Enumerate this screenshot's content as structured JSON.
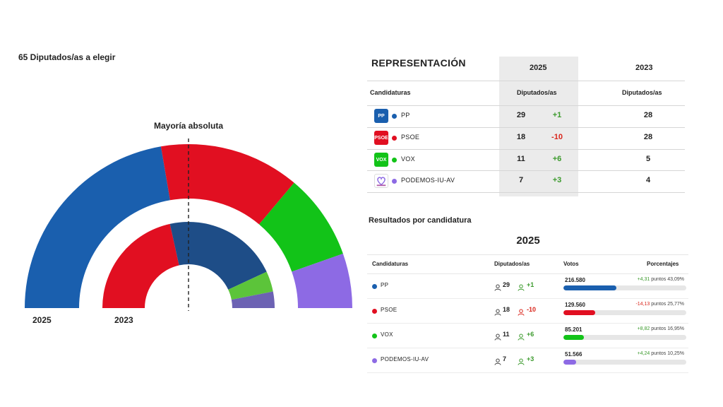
{
  "seats_title": "65 Diputados/as a elegir",
  "majority_label": "Mayoría absoluta",
  "chart_data": {
    "type": "hemicycle",
    "total_seats": 65,
    "majority": 33,
    "rings": [
      {
        "year": "2025",
        "parties": [
          {
            "name": "PP",
            "seats": 29,
            "color": "#1a5fae"
          },
          {
            "name": "PSOE",
            "seats": 18,
            "color": "#e10f21"
          },
          {
            "name": "VOX",
            "seats": 11,
            "color": "#12c318"
          },
          {
            "name": "PODEMOS-IU-AV",
            "seats": 7,
            "color": "#8d6ae4"
          }
        ]
      },
      {
        "year": "2023",
        "parties": [
          {
            "name": "PSOE",
            "seats": 28,
            "color": "#e10f21"
          },
          {
            "name": "PP",
            "seats": 28,
            "color": "#1e4d87"
          },
          {
            "name": "VOX",
            "seats": 5,
            "color": "#5cc43a"
          },
          {
            "name": "PODEMOS-IU-AV",
            "seats": 4,
            "color": "#6c62b3"
          }
        ]
      }
    ]
  },
  "representation": {
    "title": "REPRESENTACIÓN",
    "year_current": "2025",
    "year_previous": "2023",
    "col_party": "Candidaturas",
    "col_seats_current": "Diputados/as",
    "col_seats_previous": "Diputados/as",
    "rows": [
      {
        "logo": "PP",
        "logo_color": "#1a5fae",
        "name": "PP",
        "color": "#1a5fae",
        "seats": "29",
        "diff": "+1",
        "diff_sign": "up",
        "prev": "28"
      },
      {
        "logo": "PSOE",
        "logo_color": "#e10f21",
        "name": "PSOE",
        "color": "#e10f21",
        "seats": "18",
        "diff": "-10",
        "diff_sign": "down",
        "prev": "28"
      },
      {
        "logo": "VOX",
        "logo_color": "#12c318",
        "name": "VOX",
        "color": "#12c318",
        "seats": "11",
        "diff": "+6",
        "diff_sign": "up",
        "prev": "5"
      },
      {
        "logo": "",
        "logo_color": "#ffffff",
        "name": "PODEMOS-IU-AV",
        "color": "#8d6ae4",
        "seats": "7",
        "diff": "+3",
        "diff_sign": "up",
        "prev": "4"
      }
    ]
  },
  "results": {
    "title": "Resultados por candidatura",
    "year": "2025",
    "col_party": "Candidaturas",
    "col_seats": "Diputados/as",
    "col_votes": "Votos",
    "col_pct": "Porcentajes",
    "rows": [
      {
        "name": "PP",
        "color": "#1a5fae",
        "seats": "29",
        "diff": "+1",
        "diff_sign": "up",
        "votes": "216.580",
        "change": "+4,31",
        "points_label": "puntos",
        "percent": "43,09%",
        "share": 0.4309
      },
      {
        "name": "PSOE",
        "color": "#e10f21",
        "seats": "18",
        "diff": "-10",
        "diff_sign": "down",
        "votes": "129.560",
        "change": "-14,13",
        "points_label": "puntos",
        "percent": "25,77%",
        "share": 0.2577
      },
      {
        "name": "VOX",
        "color": "#12c318",
        "seats": "11",
        "diff": "+6",
        "diff_sign": "up",
        "votes": "85.201",
        "change": "+8,82",
        "points_label": "puntos",
        "percent": "16,95%",
        "share": 0.1695
      },
      {
        "name": "PODEMOS-IU-AV",
        "color": "#8d6ae4",
        "seats": "7",
        "diff": "+3",
        "diff_sign": "up",
        "votes": "51.566",
        "change": "+4,24",
        "points_label": "puntos",
        "percent": "10,25%",
        "share": 0.1025
      }
    ]
  }
}
